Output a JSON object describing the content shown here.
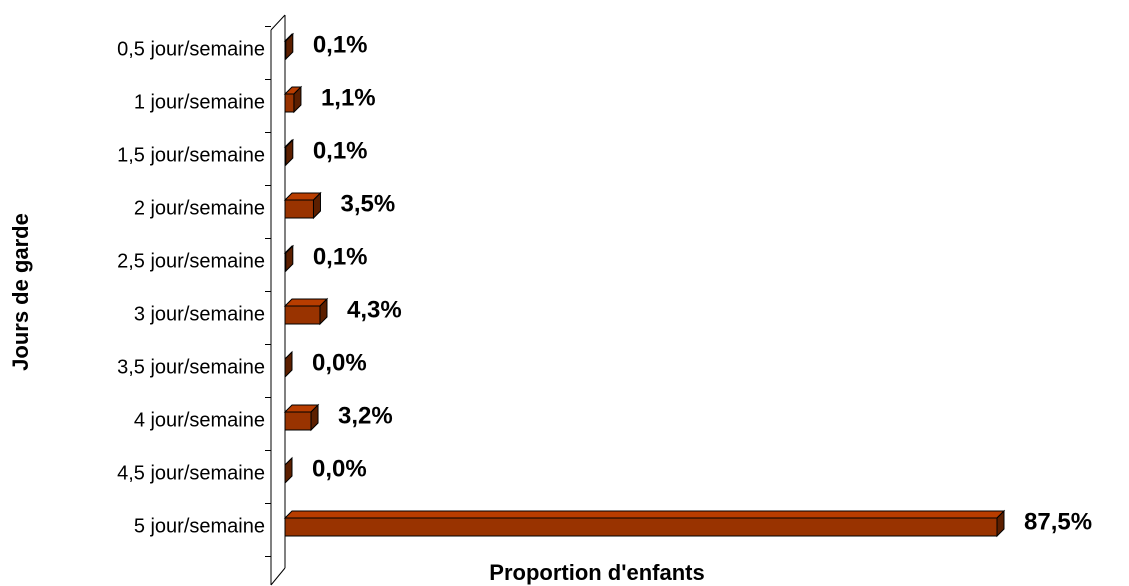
{
  "chart_data": {
    "type": "bar3d",
    "orientation": "horizontal",
    "xlabel": "Proportion d'enfants",
    "ylabel": "Jours de garde",
    "categories": [
      "0,5 jour/semaine",
      "1 jour/semaine",
      "1,5 jour/semaine",
      "2 jour/semaine",
      "2,5 jour/semaine",
      "3 jour/semaine",
      "3,5 jour/semaine",
      "4 jour/semaine",
      "4,5 jour/semaine",
      "5 jour/semaine"
    ],
    "values": [
      0.1,
      1.1,
      0.1,
      3.5,
      0.1,
      4.3,
      0.0,
      3.2,
      0.0,
      87.5
    ],
    "value_labels": [
      "0,1%",
      "1,1%",
      "0,1%",
      "3,5%",
      "0,1%",
      "4,3%",
      "0,0%",
      "3,2%",
      "0,0%",
      "87,5%"
    ],
    "color": "#993300"
  }
}
